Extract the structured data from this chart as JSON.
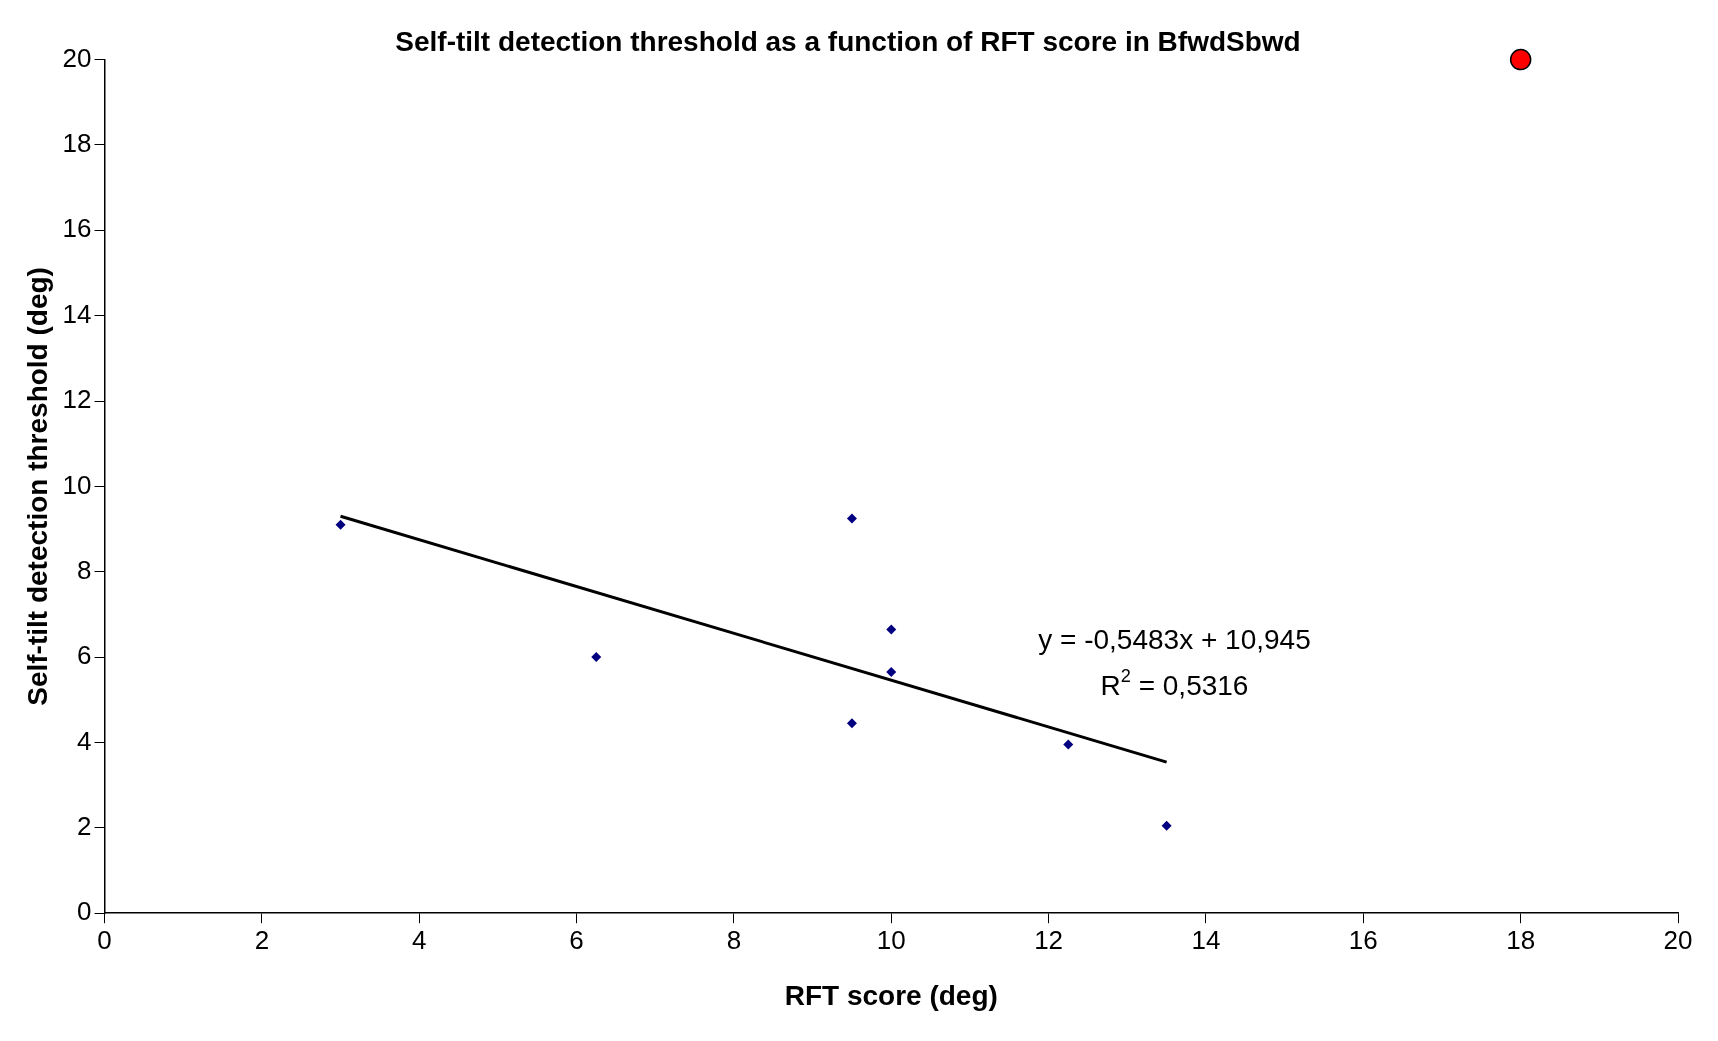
{
  "chart_data": {
    "type": "scatter",
    "title": "Self-tilt detection threshold as a function of RFT score in BfwdSbwd",
    "xlabel": "RFT score (deg)",
    "ylabel": "Self-tilt detection threshold (deg)",
    "series": [
      {
        "color": "#000080",
        "marker": "diamond",
        "x": [
          3,
          6.25,
          9.5,
          10,
          10,
          9.5,
          12.25,
          13.5
        ],
        "values": [
          9.1,
          6,
          9.25,
          6.65,
          5.65,
          4.45,
          3.95,
          2.05
        ]
      },
      {
        "color": "#ff0000",
        "marker": "circle",
        "x": [
          18
        ],
        "values": [
          20
        ]
      },
      {
        "type": "line",
        "color": "#000000",
        "x": [
          3,
          13.5
        ],
        "values": [
          9.3,
          3.54
        ]
      }
    ],
    "annotations": [
      "y = -0,5483x + 10,945",
      "R$^{2}$ = 0,5316"
    ],
    "xlim": [
      0,
      20
    ],
    "xticks": [
      0,
      2,
      4,
      6,
      8,
      10,
      12,
      14,
      16,
      18,
      20
    ],
    "ylim": [
      0,
      20
    ],
    "yticks": [
      0,
      2,
      4,
      6,
      8,
      10,
      12,
      14,
      16,
      18,
      20
    ],
    "grid": false,
    "legend": false
  }
}
